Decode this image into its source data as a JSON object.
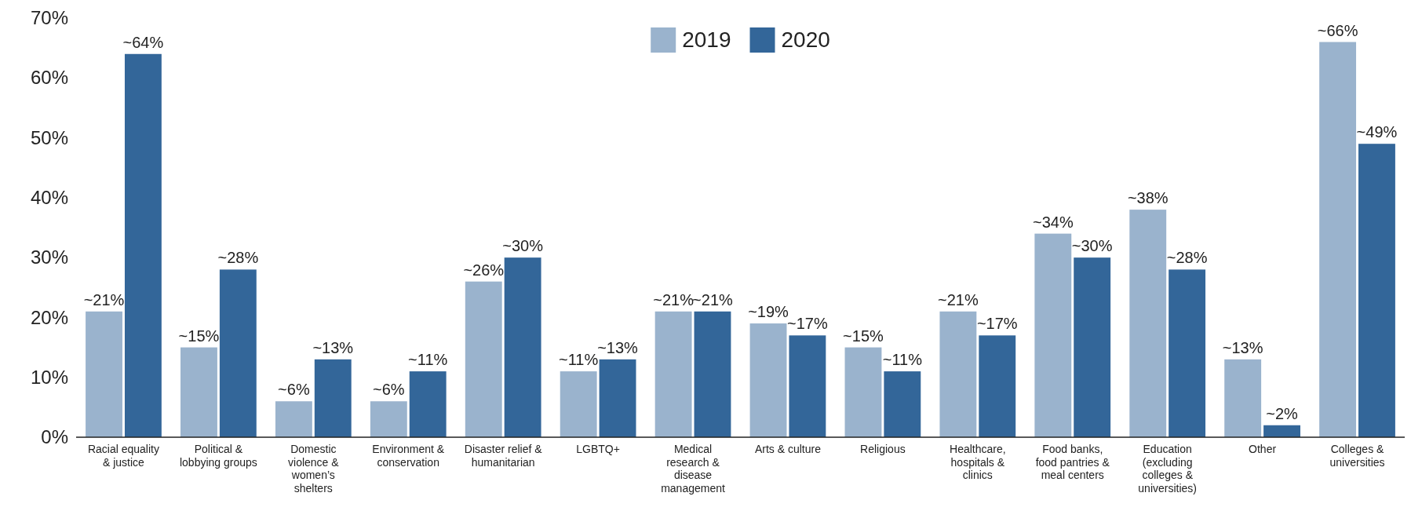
{
  "chart_data": {
    "type": "bar",
    "categories": [
      "Racial equality & justice",
      "Political & lobbying groups",
      "Domestic violence & women’s shelters",
      "Environment & conservation",
      "Disaster relief & humanitarian",
      "LGBTQ+",
      "Medical research & disease management",
      "Arts & culture",
      "Religious",
      "Healthcare, hospitals & clinics",
      "Food banks, food pantries & meal centers",
      "Education (excluding colleges & universities)",
      "Other",
      "Colleges & universities"
    ],
    "series": [
      {
        "name": "2019",
        "color": "#9ab3cd",
        "values": [
          21,
          15,
          6,
          6,
          26,
          11,
          21,
          19,
          15,
          21,
          34,
          38,
          13,
          66
        ],
        "value_labels": [
          "~21%",
          "~15%",
          "~6%",
          "~6%",
          "~26%",
          "~11%",
          "~21%",
          "~19%",
          "~15%",
          "~21%",
          "~34%",
          "~38%",
          "~13%",
          "~66%"
        ]
      },
      {
        "name": "2020",
        "color": "#336699",
        "values": [
          64,
          28,
          13,
          11,
          30,
          13,
          21,
          17,
          11,
          17,
          30,
          28,
          2,
          49
        ],
        "value_labels": [
          "~64%",
          "~28%",
          "~13%",
          "~11%",
          "~30%",
          "~13%",
          "~21%",
          "~17%",
          "~11%",
          "~17%",
          "~30%",
          "~28%",
          "~2%",
          "~49%"
        ]
      }
    ],
    "ylim": [
      0,
      70
    ],
    "yticks": [
      {
        "value": 0,
        "label": "0%"
      },
      {
        "value": 10,
        "label": "10%"
      },
      {
        "value": 20,
        "label": "20%"
      },
      {
        "value": 30,
        "label": "30%"
      },
      {
        "value": 40,
        "label": "40%"
      },
      {
        "value": 50,
        "label": "50%"
      },
      {
        "value": 60,
        "label": "60%"
      },
      {
        "value": 70,
        "label": "70%"
      }
    ],
    "legend": "top",
    "grid": false
  }
}
